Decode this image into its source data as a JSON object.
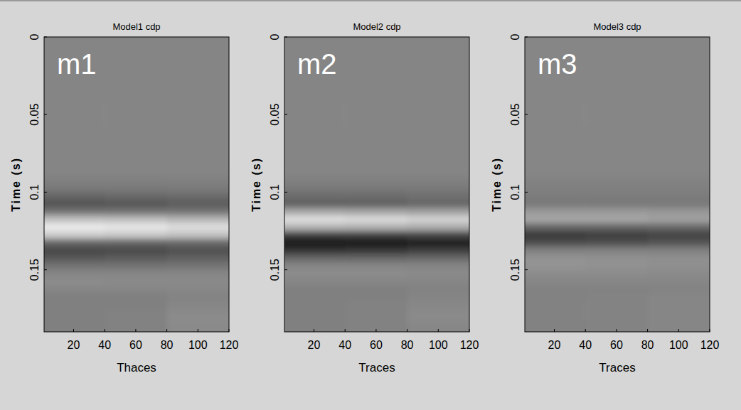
{
  "chart_data": [
    {
      "type": "heatmap",
      "title": "Model1 cdp",
      "annotation": "m1",
      "xlabel": "Thaces",
      "ylabel": "Time (s)",
      "xlim": [
        1,
        120
      ],
      "ylim": [
        0,
        0.19
      ],
      "xticks": [
        20,
        40,
        60,
        80,
        100,
        120
      ],
      "yticks": [
        0,
        0.05,
        0.1,
        0.15
      ],
      "clim": [
        -1,
        1
      ],
      "trace_bins": [
        1,
        40,
        80,
        120
      ],
      "time_bins": [
        0,
        0.005,
        0.01,
        0.015,
        0.02,
        0.025,
        0.03,
        0.035,
        0.04,
        0.045,
        0.05,
        0.055,
        0.06,
        0.065,
        0.07,
        0.075,
        0.08,
        0.085,
        0.09,
        0.095,
        0.1,
        0.105,
        0.11,
        0.115,
        0.12,
        0.125,
        0.13,
        0.135,
        0.14,
        0.145,
        0.15,
        0.155,
        0.16,
        0.165,
        0.17,
        0.175,
        0.18,
        0.185,
        0.19
      ],
      "cells": [
        [
          0.04,
          0.04,
          0.04
        ],
        [
          0.04,
          0.04,
          0.04
        ],
        [
          0.04,
          0.04,
          0.04
        ],
        [
          0.04,
          0.04,
          0.04
        ],
        [
          0.04,
          0.04,
          0.04
        ],
        [
          0.04,
          0.04,
          0.04
        ],
        [
          0.04,
          0.04,
          0.04
        ],
        [
          0.04,
          0.04,
          0.04
        ],
        [
          0.04,
          0.04,
          0.04
        ],
        [
          0.04,
          0.04,
          0.04
        ],
        [
          0.04,
          0.04,
          0.04
        ],
        [
          0.04,
          0.04,
          0.04
        ],
        [
          0.04,
          0.04,
          0.04
        ],
        [
          0.04,
          0.04,
          0.04
        ],
        [
          0.04,
          0.04,
          0.04
        ],
        [
          0.04,
          0.04,
          0.04
        ],
        [
          0.04,
          0.04,
          0.04
        ],
        [
          0.04,
          0.04,
          0.04
        ],
        [
          0,
          0,
          0
        ],
        [
          -0.05,
          -0.05,
          -0.04
        ],
        [
          -0.2,
          -0.18,
          -0.15
        ],
        [
          -0.35,
          -0.32,
          -0.28
        ],
        [
          -0.1,
          -0.1,
          -0.08
        ],
        [
          0.5,
          0.48,
          0.42
        ],
        [
          0.85,
          0.82,
          0.75
        ],
        [
          0.6,
          0.58,
          0.52
        ],
        [
          -0.2,
          -0.2,
          -0.18
        ],
        [
          -0.45,
          -0.42,
          -0.38
        ],
        [
          -0.3,
          -0.28,
          -0.25
        ],
        [
          -0.1,
          -0.1,
          -0.08
        ],
        [
          0.05,
          0.05,
          0.05
        ],
        [
          0.1,
          0.08,
          0.08
        ],
        [
          0.05,
          0.05,
          0.06
        ],
        [
          0,
          0,
          0.03
        ],
        [
          0,
          0,
          0.05
        ],
        [
          0,
          0.02,
          0.08
        ],
        [
          0,
          0.02,
          0.1
        ],
        [
          0,
          0.02,
          0.08
        ]
      ]
    },
    {
      "type": "heatmap",
      "title": "Model2 cdp",
      "annotation": "m2",
      "xlabel": "Traces",
      "ylabel": "Time (s)",
      "xlim": [
        1,
        120
      ],
      "ylim": [
        0,
        0.19
      ],
      "xticks": [
        20,
        40,
        60,
        80,
        100,
        120
      ],
      "yticks": [
        0,
        0.05,
        0.1,
        0.15
      ],
      "clim": [
        -1,
        1
      ],
      "trace_bins": [
        1,
        40,
        80,
        120
      ],
      "time_bins": [
        0,
        0.005,
        0.01,
        0.015,
        0.02,
        0.025,
        0.03,
        0.035,
        0.04,
        0.045,
        0.05,
        0.055,
        0.06,
        0.065,
        0.07,
        0.075,
        0.08,
        0.085,
        0.09,
        0.095,
        0.1,
        0.105,
        0.11,
        0.115,
        0.12,
        0.125,
        0.13,
        0.135,
        0.14,
        0.145,
        0.15,
        0.155,
        0.16,
        0.165,
        0.17,
        0.175,
        0.18,
        0.185,
        0.19
      ],
      "cells": [
        [
          0.04,
          0.04,
          0.04
        ],
        [
          0.04,
          0.04,
          0.04
        ],
        [
          0.04,
          0.04,
          0.04
        ],
        [
          0.04,
          0.04,
          0.04
        ],
        [
          0.04,
          0.04,
          0.04
        ],
        [
          0.04,
          0.04,
          0.04
        ],
        [
          0.04,
          0.04,
          0.04
        ],
        [
          0.04,
          0.04,
          0.04
        ],
        [
          0.04,
          0.04,
          0.04
        ],
        [
          0.04,
          0.04,
          0.04
        ],
        [
          0.04,
          0.04,
          0.04
        ],
        [
          0.04,
          0.04,
          0.04
        ],
        [
          0.04,
          0.04,
          0.04
        ],
        [
          0.04,
          0.04,
          0.04
        ],
        [
          0.04,
          0.04,
          0.04
        ],
        [
          0.04,
          0.04,
          0.04
        ],
        [
          0.04,
          0.04,
          0.04
        ],
        [
          0.04,
          0.04,
          0.04
        ],
        [
          0,
          0,
          0
        ],
        [
          -0.05,
          -0.05,
          -0.05
        ],
        [
          -0.15,
          -0.15,
          -0.12
        ],
        [
          -0.25,
          -0.24,
          -0.2
        ],
        [
          0.3,
          0.28,
          0.25
        ],
        [
          0.75,
          0.72,
          0.66
        ],
        [
          0.4,
          0.38,
          0.35
        ],
        [
          -0.5,
          -0.48,
          -0.44
        ],
        [
          -0.85,
          -0.82,
          -0.76
        ],
        [
          -0.6,
          -0.58,
          -0.52
        ],
        [
          -0.2,
          -0.2,
          -0.18
        ],
        [
          0.05,
          0.05,
          0.04
        ],
        [
          0.1,
          0.1,
          0.08
        ],
        [
          0.05,
          0.05,
          0.05
        ],
        [
          0,
          0,
          0.02
        ],
        [
          0,
          0,
          0.04
        ],
        [
          0,
          0.02,
          0.06
        ],
        [
          0,
          0.02,
          0.08
        ],
        [
          0,
          0.02,
          0.08
        ],
        [
          0,
          0.02,
          0.06
        ]
      ]
    },
    {
      "type": "heatmap",
      "title": "Model3 cdp",
      "annotation": "m3",
      "xlabel": "Traces",
      "ylabel": "Time (s)",
      "xlim": [
        1,
        120
      ],
      "ylim": [
        0,
        0.19
      ],
      "xticks": [
        20,
        40,
        60,
        80,
        100,
        120
      ],
      "yticks": [
        0,
        0.05,
        0.1,
        0.15
      ],
      "clim": [
        -1,
        1
      ],
      "trace_bins": [
        1,
        40,
        80,
        120
      ],
      "time_bins": [
        0,
        0.005,
        0.01,
        0.015,
        0.02,
        0.025,
        0.03,
        0.035,
        0.04,
        0.045,
        0.05,
        0.055,
        0.06,
        0.065,
        0.07,
        0.075,
        0.08,
        0.085,
        0.09,
        0.095,
        0.1,
        0.105,
        0.11,
        0.115,
        0.12,
        0.125,
        0.13,
        0.135,
        0.14,
        0.145,
        0.15,
        0.155,
        0.16,
        0.165,
        0.17,
        0.175,
        0.18,
        0.185,
        0.19
      ],
      "cells": [
        [
          0.05,
          0.05,
          0.05
        ],
        [
          0.05,
          0.05,
          0.05
        ],
        [
          0.05,
          0.05,
          0.05
        ],
        [
          0.05,
          0.05,
          0.05
        ],
        [
          0.05,
          0.05,
          0.05
        ],
        [
          0.05,
          0.05,
          0.05
        ],
        [
          0.05,
          0.05,
          0.05
        ],
        [
          0.05,
          0.05,
          0.05
        ],
        [
          0.05,
          0.05,
          0.05
        ],
        [
          0.05,
          0.05,
          0.05
        ],
        [
          0.05,
          0.05,
          0.05
        ],
        [
          0.05,
          0.05,
          0.05
        ],
        [
          0.05,
          0.05,
          0.05
        ],
        [
          0.05,
          0.05,
          0.05
        ],
        [
          0.05,
          0.05,
          0.05
        ],
        [
          0.05,
          0.05,
          0.05
        ],
        [
          0.05,
          0.05,
          0.05
        ],
        [
          0.05,
          0.05,
          0.05
        ],
        [
          0.02,
          0.02,
          0.02
        ],
        [
          0,
          0,
          0
        ],
        [
          -0.03,
          -0.03,
          -0.03
        ],
        [
          -0.05,
          -0.05,
          -0.05
        ],
        [
          0.2,
          0.2,
          0.18
        ],
        [
          0.3,
          0.3,
          0.26
        ],
        [
          -0.2,
          -0.2,
          -0.18
        ],
        [
          -0.55,
          -0.53,
          -0.48
        ],
        [
          -0.4,
          -0.38,
          -0.34
        ],
        [
          0,
          0,
          0
        ],
        [
          0.15,
          0.14,
          0.12
        ],
        [
          0.15,
          0.14,
          0.12
        ],
        [
          0.1,
          0.1,
          0.08
        ],
        [
          0.05,
          0.05,
          0.05
        ],
        [
          0.02,
          0.02,
          0.03
        ],
        [
          0.02,
          0.03,
          0.05
        ],
        [
          0.02,
          0.03,
          0.05
        ],
        [
          0.02,
          0.03,
          0.05
        ],
        [
          0.02,
          0.03,
          0.05
        ],
        [
          0.02,
          0.03,
          0.05
        ]
      ]
    }
  ]
}
